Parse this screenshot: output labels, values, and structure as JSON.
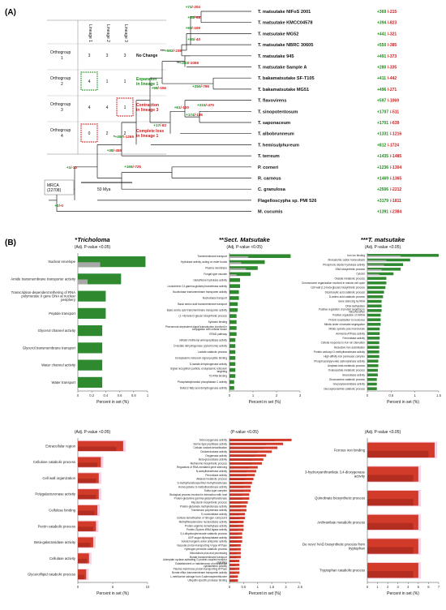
{
  "panel_a": {
    "label": "(A)",
    "scale_label": "50 Mya",
    "mrca_label": "MRCA (22708)",
    "og_table": {
      "headers": [
        "Lineage 1",
        "Lineage 2",
        "Lineage 3"
      ],
      "rows": [
        {
          "name": "Orthogroup 1",
          "values": [
            "3",
            "3",
            "3"
          ],
          "desc": "No Change",
          "color": "#111111"
        },
        {
          "name": "Orthogroup 2",
          "values": [
            "4",
            "1",
            "1"
          ],
          "desc": "Expansion in lineage 1",
          "color": "#1a8a1a"
        },
        {
          "name": "Orthogroup 3",
          "values": [
            "4",
            "4",
            "1"
          ],
          "desc": "Contraction in lineage 3",
          "color": "#d11919"
        },
        {
          "name": "Orthogroup 4",
          "values": [
            "0",
            "2",
            "2"
          ],
          "desc": "Complete loss in lineage 1",
          "color": "#d11919"
        }
      ]
    },
    "species": [
      {
        "name": "T. matsutake NIFoS 2001",
        "gain": "+369",
        "loss": "-215"
      },
      {
        "name": "T. matsutake KMCC04578",
        "gain": "+394",
        "loss": "-823"
      },
      {
        "name": "T. matsutake MG52",
        "gain": "+441",
        "loss": "-321"
      },
      {
        "name": "T. matsutake NBRC 30605",
        "gain": "+550",
        "loss": "-385"
      },
      {
        "name": "T. matsutake 945",
        "gain": "+491",
        "loss": "-373"
      },
      {
        "name": "T. matsutake Sample A",
        "gain": "+280",
        "loss": "-335"
      },
      {
        "name": "T. bakamatsutake SF-T105",
        "gain": "+411",
        "loss": "-442"
      },
      {
        "name": "T. bakamatsutake MG51",
        "gain": "+496",
        "loss": "-271"
      },
      {
        "name": "T. flavovirens",
        "gain": "+597",
        "loss": "-1069"
      },
      {
        "name": "T. sinopotentosum",
        "gain": "+1707",
        "loss": "-511"
      },
      {
        "name": "T. saponaceum",
        "gain": "+1701",
        "loss": "-639"
      },
      {
        "name": "T. albobrunneum",
        "gain": "+1331",
        "loss": "-1216"
      },
      {
        "name": "T. hemisulphureum",
        "gain": "+812",
        "loss": "-1724"
      },
      {
        "name": "T. terreum",
        "gain": "+1435",
        "loss": "-1485"
      },
      {
        "name": "P. corneri",
        "gain": "+1236",
        "loss": "-1304"
      },
      {
        "name": "R. carneus",
        "gain": "+1469",
        "loss": "-1365"
      },
      {
        "name": "C. granulosa",
        "gain": "+2506",
        "loss": "-2212"
      },
      {
        "name": "Flagelloscypha sp. PMI 526",
        "gain": "+3179",
        "loss": "-1811"
      },
      {
        "name": "M. cucumis",
        "gain": "+1391",
        "loss": "-2384"
      }
    ],
    "node_labels": [
      {
        "gain": "+74",
        "loss": "-204"
      },
      {
        "gain": "+53",
        "loss": "-98"
      },
      {
        "gain": "+99",
        "loss": "-109"
      },
      {
        "gain": "+80",
        "loss": "-40"
      },
      {
        "prefix": "***",
        "gain": "+592",
        "loss": "-239"
      },
      {
        "prefix": "**",
        "gain": "+383",
        "loss": "-1056"
      },
      {
        "gain": "+250",
        "loss": "-799"
      },
      {
        "gain": "+98",
        "loss": "-156"
      },
      {
        "gain": "+215",
        "loss": "-470"
      },
      {
        "gain": "+174",
        "loss": "-185"
      },
      {
        "gain": "+61",
        "loss": "-100"
      },
      {
        "gain": "+17",
        "loss": "-82"
      },
      {
        "prefix": "*",
        "gain": "+457",
        "loss": "-1265"
      },
      {
        "gain": "+38",
        "loss": "-455"
      },
      {
        "gain": "+165",
        "loss": "-725"
      },
      {
        "gain": "+1",
        "loss": "-12"
      },
      {
        "gain": "+0",
        "loss": "-0"
      }
    ]
  },
  "panel_b": {
    "label": "(B)",
    "x_axis_label": "Percent in set (%)",
    "columns": [
      {
        "title_prefix": "*",
        "title": "Tricholoma",
        "subtitle": "(Adj. P-value <0.05)"
      },
      {
        "title_prefix": "**",
        "title": "Sect. Matsutake",
        "subtitle": "(Adj. P-value <0.05)"
      },
      {
        "title_prefix": "***",
        "title": "T. matsutake",
        "subtitle": "(Adj. P-value <0.05)"
      }
    ],
    "bottom_subtitles": [
      "(Adj. P-value <0.05)",
      "(P-value <0.05)",
      "(Adj. P-value <0.05)"
    ]
  },
  "colors": {
    "gain": "#1a8a1a",
    "loss": "#d11919",
    "bar_green": "#2f8a2f",
    "bar_red": "#d23a2a",
    "bar_gray": "#a8a8a8",
    "bar_pink": "#f0a8c8"
  },
  "chart_data": [
    {
      "type": "bar",
      "orientation": "horizontal",
      "color": "green",
      "categories": [
        "Nuclear envelope",
        "Amide transmembrane transporter activity",
        "Transcription-dependent tethering of RNA polymerase II gene DNA at nuclear periphery",
        "Peptide transport",
        "Glycerol channel activity",
        "Glycerol transmembrane transport",
        "Water channel activity",
        "Water transport"
      ],
      "values": [
        0.97,
        0.62,
        0.4,
        0.4,
        0.35,
        0.35,
        0.35,
        0.35
      ],
      "background_values": [
        0.32,
        0.14,
        0.0,
        0.0,
        0.0,
        0.0,
        0.0,
        0.0
      ],
      "xlim": [
        0,
        1
      ],
      "xticks": [
        "0",
        "0.2",
        "0.4",
        "0.6",
        "0.8",
        "1"
      ]
    },
    {
      "type": "bar",
      "orientation": "horizontal",
      "color": "green",
      "categories": [
        "Transmembrane transport",
        "Hydrolase activity, acting on ester bonds",
        "Plasma membrane",
        "Fungal-type vacuole",
        "Glutathione hydrolase activity",
        "Leukotriene C4 gamma-glutamyl transferase activity",
        "Nucleobase transmembrane transporter activity",
        "Nucleobase transport",
        "Basic amino acid transmembrane transport",
        "Basic amino acid transmembrane transporter activity",
        "(1->4)-beta-D-glucan biosynthetic process",
        "Syntaxin binding",
        "Pheromone-dependent signal transduction involved in conjugation with cellular fusion",
        "ERAD pathway",
        "Initiator methionyl aminopeptidase activity",
        "D-lactate dehydrogenase (cytochrome) activity",
        "Lactate catabolic process",
        "Endoplasmic reticulum signal peptide binding",
        "D-lactate dehydrogenase activity",
        "Signal recognition particle, endoplasmic reticulum targeting",
        "7S RNA binding",
        "Phosphatidylinositol phosphatase C activity",
        "Delta12-fatty acid dehydrogenase activity"
      ],
      "values": [
        2.6,
        1.5,
        1.2,
        0.9,
        0.45,
        0.45,
        0.4,
        0.4,
        0.35,
        0.35,
        0.3,
        0.3,
        0.3,
        0.3,
        0.25,
        0.25,
        0.25,
        0.25,
        0.25,
        0.25,
        0.25,
        0.2,
        0.2
      ],
      "background_values": [
        0.8,
        0.5,
        0.7,
        0.3,
        0,
        0,
        0,
        0,
        0,
        0,
        0,
        0,
        0,
        0,
        0,
        0,
        0,
        0,
        0,
        0,
        0,
        0,
        0
      ],
      "xlim": [
        0,
        3
      ],
      "xticks": [
        "0",
        "1",
        "2",
        "3"
      ]
    },
    {
      "type": "bar",
      "orientation": "horizontal",
      "color": "green",
      "categories": [
        "Iron ion binding",
        "Monoatomic cation homeostasis",
        "Phosphoric diester hydrolase activity",
        "DNA biosynthetic process",
        "Cytosol",
        "Oxalate metabolic process",
        "Chromosome organization involved in meiotic cell cycle",
        "Cell wall (1,3-beta-glucan) biosynthetic process",
        "Dicarboxylic acid catabolic process",
        "D-amino acid catabolic process",
        "Gene silencing by RNA",
        "DNA methylation",
        "Positive regulation of protein targeting to mitochondrion",
        "Positive regulation of mRNA",
        "Protein localization to nucleolus",
        "Mitotic sister chromatid segregation",
        "Mitotic spindle pole microtubule",
        "Ammonia ATPase activity",
        "Ferroxidase activity",
        "Cellular response to iron ion starvation",
        "Reductive iron assimilation",
        "Protein carboxyl O-methyltransferase activity",
        "High-affinity iron permease complex",
        "Phosphoenolpyruvate carboxykinase activity",
        "Amylase-beta metabolic process",
        "Oxaloacetate metabolic process",
        "Glucosidase activity",
        "Glucosamine catabolic process",
        "Glucosylceramidase activity",
        "Glucosylceramide catabolic process"
      ],
      "values": [
        1.5,
        0.9,
        0.75,
        0.7,
        0.55,
        0.4,
        0.4,
        0.38,
        0.35,
        0.33,
        0.3,
        0.3,
        0.3,
        0.28,
        0.28,
        0.28,
        0.26,
        0.26,
        0.26,
        0.25,
        0.25,
        0.25,
        0.25,
        0.23,
        0.23,
        0.22,
        0.22,
        0.2,
        0.2,
        0.2
      ],
      "background_values": [
        0.7,
        0.4,
        0.35,
        0.3,
        0.25,
        0,
        0,
        0,
        0,
        0,
        0,
        0,
        0,
        0,
        0,
        0,
        0,
        0,
        0,
        0,
        0,
        0,
        0,
        0,
        0,
        0,
        0,
        0,
        0,
        0
      ],
      "xlim": [
        0,
        1.5
      ],
      "xticks": [
        "0",
        "0.5",
        "1",
        "1.5"
      ]
    },
    {
      "type": "bar",
      "orientation": "horizontal",
      "color": "red",
      "categories": [
        "Extracellular region",
        "Cellulose catabolic process",
        "Cell wall organization",
        "Polygalacturonase activity",
        "Cellulose binding",
        "Pectin catabolic process",
        "Beta-galactosidase activity",
        "Cellulase activity",
        "Glycerol/lipid catabolic process"
      ],
      "values": [
        6.5,
        3.3,
        3.0,
        3.0,
        2.8,
        2.6,
        2.2,
        1.6,
        1.2
      ],
      "background_values": [
        5.5,
        2.8,
        2.6,
        2.6,
        2.4,
        2.2,
        1.8,
        1.3,
        0.9
      ],
      "xlim": [
        0,
        10
      ],
      "xticks": [
        "0",
        "5",
        "10"
      ]
    },
    {
      "type": "bar",
      "orientation": "horizontal",
      "color": "red",
      "categories": [
        "Monooxygenase activity",
        "Serine-type peptidase activity",
        "Cellular oxidant detoxification",
        "Oxidoreductase activity",
        "Oxygenase activity",
        "Beta-glucosidase activity",
        "Methionine biosynthetic process",
        "Regulators of RNA-mediated gene silencing",
        "N-acetyltransferase activity",
        "Peroxidase activity",
        "Alkaloid metabolic process",
        "S-methyltransferase/thiol methyltransferase",
        "Homocysteine S-methyltransferase activity",
        "Sulfur-type complex",
        "Biological process involved in interaction with host",
        "Protein-glutamine gamma-glutamyltransferase",
        "Mycotoxin biosynthetic process",
        "Protein-glutamate methylesterase activity",
        "Translesion polymerase activity",
        "5'-nucleotidase activity",
        "Cellular detoxification of nitrogen compound",
        "Methylthioadenosine nucleosidase activity",
        "Protein-arginine demethylase activity",
        "Protein-Glycine-tRNA ligase activity",
        "3,4-dihydroxybenzoate catabolic process",
        "UDP-sugar diphosphatase activity",
        "Solute:inorganic anion antiporter activity",
        "Vacuolar proton-transporting V-type ATPase",
        "Hydrogen peroxide catabolic process",
        "Microtubule plus-end processing",
        "Borate transmembrane transport",
        "Adenylate cyclase-activating G protein-coupled receptor signaling",
        "Establishment or maintenance of microtubule cytoskeleton polarity",
        "Plasma membrane proton-transporting ATPase",
        "Borate efflux transmembrane transporter activity",
        "L-methionine salvage from S-adenosylmethionine",
        "Ubiquitin-specific protease binding"
      ],
      "values": [
        2.2,
        1.9,
        1.7,
        1.5,
        1.3,
        1.2,
        1.15,
        1.0,
        0.95,
        0.9,
        0.85,
        0.8,
        0.75,
        0.75,
        0.7,
        0.7,
        0.65,
        0.6,
        0.6,
        0.55,
        0.55,
        0.5,
        0.5,
        0.5,
        0.45,
        0.45,
        0.45,
        0.4,
        0.4,
        0.4,
        0.4,
        0.35,
        0.35,
        0.35,
        0.35,
        0.3,
        0.3
      ],
      "background_values": [
        1.6,
        1.3,
        1.2,
        1.0,
        0.9,
        0.8,
        0.8,
        0.7,
        0.6,
        0.6,
        0.55,
        0.5,
        0.5,
        0.5,
        0.45,
        0.45,
        0.4,
        0.4,
        0.4,
        0.35,
        0.35,
        0.3,
        0.3,
        0.3,
        0.3,
        0.3,
        0.3,
        0.25,
        0.25,
        0.25,
        0.25,
        0.2,
        0.2,
        0.2,
        0.2,
        0.2,
        0.2
      ],
      "xlim": [
        0,
        2.5
      ],
      "xticks": [
        "0",
        "0.5",
        "1",
        "1.5",
        "2",
        "2.5"
      ]
    },
    {
      "type": "bar",
      "orientation": "horizontal",
      "color": "red",
      "categories": [
        "Ferrous iron binding",
        "3-hydroxyanthranilate 3,4-dioxygenase activity",
        "Quinolinate biosynthetic process",
        "Anthranilate metabolic process",
        "De novo' NAD biosynthetic process from tryptophan",
        "Tryptophan catabolic process"
      ],
      "values": [
        6.6,
        5.0,
        5.0,
        5.0,
        5.0,
        5.0
      ],
      "background_values": [
        6.0,
        4.5,
        4.5,
        4.5,
        4.5,
        4.5
      ],
      "xlim": [
        0,
        7
      ],
      "xticks": [
        "0",
        "1",
        "2",
        "3",
        "4",
        "5",
        "6",
        "7"
      ]
    }
  ]
}
